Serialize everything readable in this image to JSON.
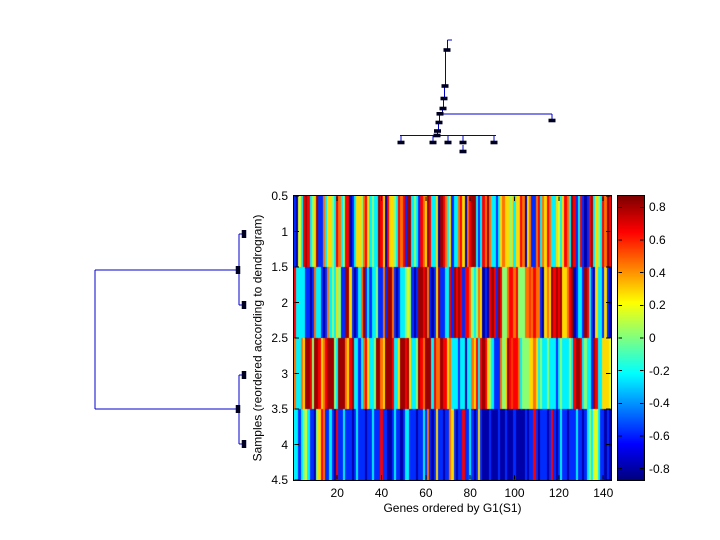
{
  "figure": {
    "background": "#ffffff"
  },
  "chart_data": {
    "type": "heatmap",
    "title": "",
    "xlabel": "Genes ordered by G1(S1)",
    "ylabel": "Samples (reordered according to dendrogram)",
    "x_range": [
      0.5,
      143.5
    ],
    "y_range": [
      0.5,
      4.5
    ],
    "rows": 4,
    "cols": 143,
    "x_ticks": [
      20,
      40,
      60,
      80,
      100,
      120,
      140
    ],
    "x_tick_labels": [
      "20",
      "40",
      "60",
      "80",
      "100",
      "120",
      "140"
    ],
    "y_ticks": [
      0.5,
      1,
      1.5,
      2,
      2.5,
      3,
      3.5,
      4,
      4.5
    ],
    "y_tick_labels": [
      "0.5",
      "1",
      "1.5",
      "2",
      "2.5",
      "3",
      "3.5",
      "4",
      "4.5"
    ],
    "colormap": "jet",
    "clim": [
      -0.87,
      0.87
    ],
    "grid": false,
    "colorbar": {
      "tick_values": [
        0.8,
        0.6,
        0.4,
        0.2,
        0,
        -0.2,
        -0.4,
        -0.6,
        -0.8
      ],
      "tick_labels": [
        "0.8",
        "0.6",
        "0.4",
        "0.2",
        "0",
        "-0.2",
        "-0.4",
        "-0.6",
        "-0.8"
      ]
    },
    "matrix": [
      [
        -0.58,
        -0.8,
        0.16,
        -0.24,
        0.66,
        0.82,
        0.66,
        -0.24,
        0.02,
        0.28,
        0.82,
        -0.58,
        -0.58,
        0.46,
        -0.24,
        0.28,
        0.28,
        0.02,
        -0.24,
        0.66,
        0.46,
        -0.24,
        0.02,
        0.66,
        0.66,
        -0.8,
        -0.58,
        -0.24,
        0.28,
        0.28,
        0.02,
        0.46,
        0.66,
        0.28,
        -0.24,
        0.02,
        -0.24,
        -0.24,
        0.82,
        0.66,
        0.28,
        -0.8,
        0.66,
        0.28,
        0.28,
        0.02,
        -0.24,
        0.66,
        0.46,
        0.66,
        -0.58,
        0.82,
        0.82,
        -0.24,
        0.02,
        -0.24,
        -0.58,
        0.66,
        0.46,
        0.28,
        0.82,
        0.66,
        -0.24,
        -0.24,
        0.28,
        -0.8,
        0.82,
        0.66,
        0.46,
        -0.24,
        0.28,
        -0.58,
        -0.24,
        -0.24,
        0.46,
        0.66,
        0.28,
        -0.8,
        0.46,
        0.66,
        0.82,
        0.82,
        -0.24,
        -0.58,
        -0.24,
        0.66,
        0.46,
        0.82,
        0.46,
        -0.24,
        -0.24,
        -0.58,
        -0.24,
        0.28,
        0.46,
        0.28,
        0.28,
        0.02,
        0.28,
        -0.24,
        0.28,
        0.28,
        0.66,
        0.46,
        -0.8,
        0.28,
        0.46,
        -0.58,
        -0.58,
        0.46,
        0.66,
        -0.24,
        0.46,
        0.28,
        0.66,
        0.46,
        -0.24,
        -0.24,
        0.28,
        0.16,
        -0.24,
        0.28,
        0.66,
        0.46,
        -0.24,
        0.82,
        0.66,
        -0.58,
        -0.24,
        0.66,
        -0.58,
        -0.8,
        -0.58,
        0.66,
        0.82,
        -0.24,
        0.28,
        0.02,
        -0.24,
        0.66,
        0.46,
        0.82,
        0.66
      ],
      [
        0.66,
        -0.24,
        -0.24,
        -0.24,
        -0.24,
        -0.58,
        -0.58,
        -0.8,
        -0.58,
        0.46,
        -0.24,
        -0.24,
        -0.58,
        -0.8,
        -0.58,
        0.46,
        -0.24,
        0.02,
        -0.24,
        0.28,
        0.02,
        -0.58,
        -0.58,
        0.82,
        0.82,
        0.28,
        -0.58,
        -0.8,
        -0.58,
        -0.24,
        0.46,
        0.82,
        -0.58,
        -0.24,
        -0.58,
        -0.24,
        -0.24,
        0.02,
        -0.58,
        -0.58,
        0.46,
        -0.58,
        0.82,
        0.82,
        0.46,
        -0.58,
        -0.8,
        -0.58,
        -0.24,
        -0.24,
        0.02,
        0.16,
        0.02,
        -0.58,
        -0.8,
        -0.58,
        0.82,
        0.82,
        0.66,
        0.82,
        0.46,
        -0.58,
        -0.8,
        -0.58,
        0.28,
        0.82,
        -0.58,
        -0.58,
        -0.24,
        -0.24,
        0.66,
        -0.58,
        0.82,
        0.66,
        0.82,
        0.66,
        -0.58,
        0.66,
        0.66,
        0.46,
        0.02,
        -0.24,
        0.02,
        0.46,
        0.28,
        -0.8,
        -0.58,
        -0.8,
        0.66,
        0.82,
        0.66,
        -0.58,
        0.82,
        0.66,
        0.02,
        0.02,
        0.46,
        0.66,
        0.66,
        0.46,
        0.66,
        0.02,
        0.02,
        0.02,
        0.46,
        0.46,
        0.56,
        0.46,
        0.66,
        0.46,
        0.46,
        -0.58,
        -0.8,
        0.28,
        0.46,
        0.28,
        0.82,
        0.66,
        0.82,
        0.66,
        0.82,
        0.28,
        0.28,
        0.46,
        0.66,
        0.82,
        -0.8,
        -0.58,
        -0.24,
        -0.24,
        -0.58,
        0.82,
        0.66,
        -0.24,
        -0.58,
        -0.8,
        0.28,
        -0.24,
        -0.24,
        -0.58,
        0.28,
        -0.58,
        -0.8
      ],
      [
        0.46,
        -0.24,
        -0.24,
        0.46,
        0.28,
        0.82,
        0.82,
        0.66,
        0.02,
        0.82,
        0.82,
        0.66,
        0.28,
        0.46,
        0.66,
        0.82,
        0.82,
        0.82,
        0.02,
        -0.24,
        0.82,
        0.82,
        0.82,
        0.46,
        0.28,
        0.66,
        0.82,
        -0.24,
        -0.24,
        -0.58,
        -0.24,
        0.46,
        0.66,
        0.28,
        -0.24,
        -0.24,
        0.02,
        0.82,
        0.82,
        0.46,
        0.28,
        0.82,
        0.82,
        0.82,
        0.66,
        -0.24,
        -0.24,
        0.28,
        0.82,
        0.82,
        0.66,
        0.82,
        0.28,
        -0.24,
        -0.24,
        0.02,
        0.82,
        0.66,
        0.46,
        0.82,
        0.82,
        0.82,
        -0.24,
        0.66,
        0.46,
        0.46,
        0.82,
        0.66,
        0.66,
        0.28,
        0.46,
        -0.24,
        -0.24,
        -0.24,
        -0.58,
        -0.24,
        -0.24,
        -0.8,
        -0.24,
        -0.24,
        0.46,
        0.28,
        0.66,
        -0.24,
        0.66,
        0.82,
        0.66,
        0.28,
        0.02,
        -0.24,
        -0.58,
        -0.58,
        -0.58,
        0.46,
        0.02,
        0.28,
        0.82,
        0.66,
        0.56,
        0.66,
        0.66,
        0.46,
        -0.24,
        0.02,
        0.02,
        0.02,
        0.28,
        0.28,
        0.46,
        0.28,
        -0.24,
        0.02,
        -0.24,
        -0.24,
        0.02,
        -0.24,
        -0.24,
        -0.24,
        -0.58,
        -0.24,
        0.02,
        -0.24,
        -0.24,
        -0.24,
        0.02,
        -0.24,
        0.66,
        0.82,
        0.82,
        0.66,
        -0.24,
        0.02,
        -0.24,
        -0.24,
        -0.58,
        0.82,
        0.66,
        -0.24,
        -0.24,
        0.28,
        0.28,
        0.28,
        0.16
      ],
      [
        -0.24,
        -0.24,
        -0.58,
        -0.24,
        0.02,
        0.16,
        -0.24,
        -0.58,
        -0.58,
        -0.8,
        0.02,
        0.28,
        0.66,
        0.46,
        -0.58,
        -0.58,
        -0.24,
        -0.58,
        -0.8,
        0.66,
        -0.58,
        -0.58,
        -0.24,
        -0.58,
        -0.58,
        -0.58,
        -0.8,
        -0.58,
        -0.24,
        -0.58,
        -0.58,
        -0.58,
        -0.8,
        -0.58,
        -0.58,
        -0.24,
        -0.58,
        -0.58,
        -0.58,
        0.66,
        -0.58,
        -0.58,
        -0.8,
        -0.8,
        -0.58,
        -0.24,
        -0.58,
        -0.58,
        -0.8,
        -0.58,
        -0.24,
        -0.24,
        -0.58,
        -0.58,
        -0.58,
        -0.8,
        -0.58,
        -0.58,
        -0.24,
        -0.58,
        0.46,
        -0.58,
        -0.8,
        -0.58,
        0.28,
        -0.58,
        -0.58,
        -0.8,
        -0.58,
        -0.58,
        0.46,
        0.28,
        -0.58,
        -0.8,
        -0.58,
        -0.58,
        0.66,
        -0.58,
        -0.58,
        -0.24,
        -0.58,
        -0.8,
        -0.58,
        0.28,
        -0.58,
        -0.8,
        -0.8,
        -0.8,
        -0.58,
        -0.8,
        -0.8,
        -0.8,
        -0.58,
        -0.8,
        -0.8,
        -0.58,
        -0.8,
        -0.8,
        -0.8,
        -0.58,
        -0.8,
        -0.8,
        -0.8,
        -0.8,
        -0.58,
        -0.8,
        -0.58,
        -0.58,
        0.66,
        -0.58,
        -0.8,
        -0.58,
        -0.58,
        -0.58,
        -0.8,
        -0.58,
        0.66,
        -0.58,
        -0.8,
        -0.58,
        -0.24,
        -0.58,
        -0.58,
        -0.8,
        -0.58,
        -0.58,
        -0.58,
        -0.24,
        -0.58,
        -0.58,
        -0.8,
        -0.58,
        -0.24,
        0.02,
        -0.24,
        0.16,
        0.16,
        -0.24,
        -0.58,
        -0.58,
        -0.8,
        -0.58,
        -0.8
      ]
    ]
  },
  "dendrograms": {
    "line_color": "#0000cc",
    "marker_color": "#000022",
    "top": {
      "marker_size": [
        7,
        3.6
      ],
      "segments": [
        [
          447.5,
          40,
          452,
          40
        ],
        [
          447.5,
          40,
          447.5,
          50
        ],
        [
          445.5,
          50,
          445.5,
          86
        ],
        [
          444.5,
          86,
          444.5,
          98
        ],
        [
          443.5,
          98,
          443.5,
          108
        ],
        [
          442.5,
          108,
          442.5,
          114
        ],
        [
          439.5,
          114,
          552,
          114
        ],
        [
          552,
          114,
          552,
          119
        ],
        [
          439.5,
          114,
          439.5,
          122
        ],
        [
          438.5,
          122,
          438.5,
          131
        ],
        [
          437.5,
          131,
          437.5,
          135.5
        ],
        [
          400,
          135.5,
          496,
          135.5
        ],
        [
          401,
          135.5,
          401,
          141
        ],
        [
          433,
          135.5,
          433,
          141
        ],
        [
          448,
          135.5,
          448,
          141
        ],
        [
          463,
          135.5,
          463,
          141
        ],
        [
          494,
          135.5,
          494,
          141
        ],
        [
          463,
          145,
          463,
          150
        ]
      ],
      "markers": [
        [
          447,
          50
        ],
        [
          445,
          86
        ],
        [
          444,
          98.5
        ],
        [
          443,
          108.5
        ],
        [
          440,
          113.8
        ],
        [
          439,
          122.5
        ],
        [
          437.5,
          131
        ],
        [
          437,
          135.5
        ],
        [
          552,
          120.5
        ],
        [
          401,
          142.5
        ],
        [
          433,
          142.5
        ],
        [
          448,
          142.5
        ],
        [
          463,
          142.5
        ],
        [
          494,
          142.5
        ],
        [
          463,
          151.5
        ]
      ]
    },
    "left": {
      "marker_size": [
        4.5,
        8
      ],
      "segments": [
        [
          95,
          270,
          239,
          270
        ],
        [
          95,
          270,
          95,
          409
        ],
        [
          95,
          409,
          239,
          409
        ],
        [
          239,
          234,
          239,
          305
        ],
        [
          239,
          375,
          239,
          444
        ],
        [
          239,
          234,
          242,
          234
        ],
        [
          239,
          305,
          242,
          305
        ],
        [
          239,
          375,
          242,
          375
        ],
        [
          239,
          444,
          242,
          444
        ]
      ],
      "markers": [
        [
          244,
          234
        ],
        [
          244,
          305
        ],
        [
          244,
          375
        ],
        [
          244,
          444
        ],
        [
          238,
          270
        ],
        [
          238,
          409
        ]
      ]
    }
  }
}
